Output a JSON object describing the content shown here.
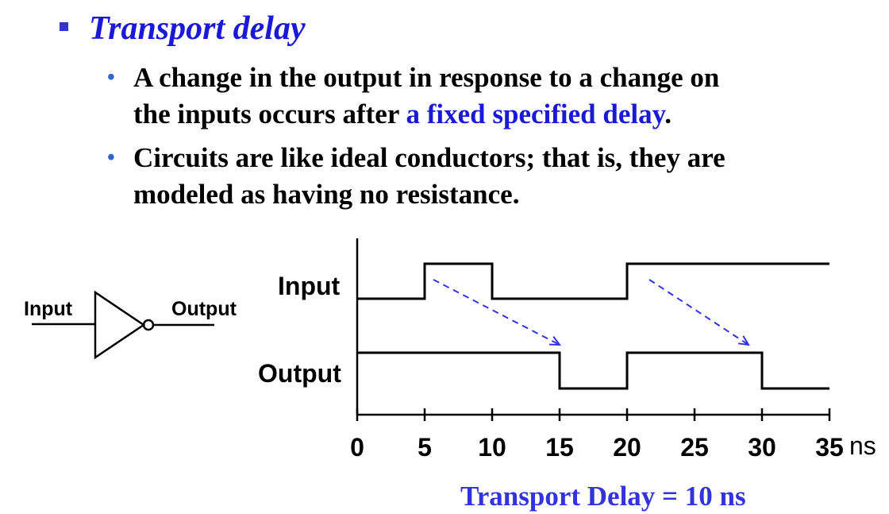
{
  "heading": "Transport delay",
  "bullets": [
    {
      "line1": "A change in the output in response to a change on",
      "line2_pre": "the inputs occurs after ",
      "line2_highlight": "a fixed specified delay",
      "line2_post": "."
    },
    {
      "line1": "Circuits are like ideal conductors; that is, they are",
      "line2": "modeled as having no resistance."
    }
  ],
  "gate": {
    "input_label": "Input",
    "output_label": "Output",
    "icon": "inverter-gate-icon"
  },
  "timing": {
    "input_label": "Input",
    "output_label": "Output",
    "ticks": [
      "0",
      "5",
      "10",
      "15",
      "20",
      "25",
      "30",
      "35"
    ],
    "unit": "ns",
    "input_signal": [
      [
        0,
        0
      ],
      [
        5,
        1
      ],
      [
        10,
        0
      ],
      [
        20,
        1
      ],
      [
        35,
        1
      ]
    ],
    "output_signal": [
      [
        0,
        1
      ],
      [
        15,
        0
      ],
      [
        20,
        1
      ],
      [
        30,
        0
      ],
      [
        35,
        0
      ]
    ],
    "arrows": [
      [
        6,
        15
      ],
      [
        22,
        29
      ]
    ],
    "arrow_color": "#3333dd"
  },
  "caption": "Transport Delay = 10 ns"
}
